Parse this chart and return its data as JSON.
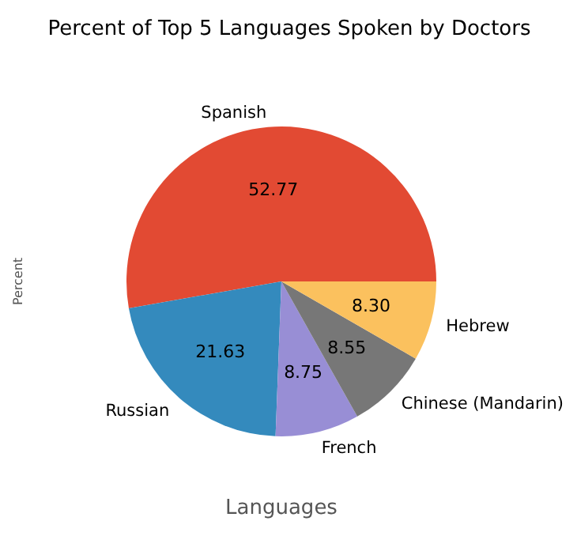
{
  "chart_data": {
    "type": "pie",
    "title": "Percent of Top 5 Languages Spoken by Doctors",
    "xlabel": "Languages",
    "ylabel": "Percent",
    "categories": [
      "Spanish",
      "Russian",
      "French",
      "Chinese (Mandarin)",
      "Hebrew"
    ],
    "values": [
      52.77,
      21.63,
      8.75,
      8.55,
      8.3
    ],
    "value_labels": [
      "52.77",
      "21.63",
      "8.75",
      "8.55",
      "8.30"
    ],
    "colors": [
      "#e24a33",
      "#348abd",
      "#988ed5",
      "#777777",
      "#fbc15e"
    ]
  }
}
